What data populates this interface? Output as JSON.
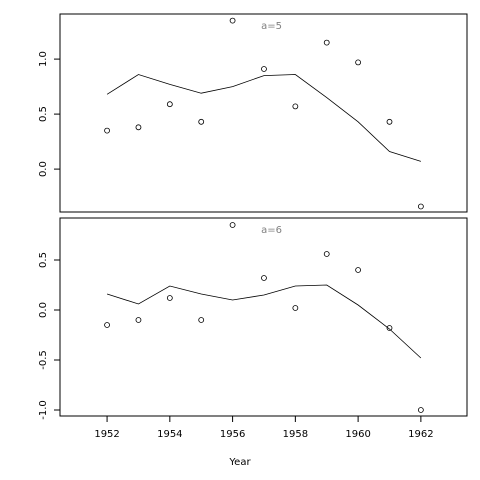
{
  "chart_data": [
    {
      "type": "scatter-line",
      "title": "a=5",
      "x": [
        1952,
        1953,
        1954,
        1955,
        1956,
        1957,
        1958,
        1959,
        1960,
        1961,
        1962
      ],
      "series": [
        {
          "style": "points",
          "color": "#000000",
          "values": [
            0.35,
            0.38,
            0.59,
            0.43,
            1.35,
            0.91,
            0.57,
            1.15,
            0.97,
            0.43,
            -0.34
          ]
        },
        {
          "style": "line",
          "color": "#000000",
          "values": [
            0.68,
            0.86,
            0.77,
            0.69,
            0.75,
            0.85,
            0.86,
            0.65,
            0.43,
            0.16,
            0.07
          ]
        }
      ],
      "xlim": [
        1950.5,
        1963.47
      ],
      "ylim": [
        -0.39,
        1.41
      ],
      "yticks": [
        {
          "value": 0,
          "label": "0.0"
        },
        0.5,
        {
          "value": 1,
          "label": "1.0"
        }
      ]
    },
    {
      "type": "scatter-line",
      "title": "a=6",
      "xlabel": "Year",
      "x": [
        1952,
        1953,
        1954,
        1955,
        1956,
        1957,
        1958,
        1959,
        1960,
        1961,
        1962
      ],
      "series": [
        {
          "style": "points",
          "color": "#000000",
          "values": [
            -0.15,
            -0.1,
            0.12,
            -0.1,
            0.85,
            0.32,
            0.02,
            0.56,
            0.4,
            -0.18,
            -1.0
          ]
        },
        {
          "style": "line",
          "color": "#000000",
          "values": [
            0.16,
            0.06,
            0.24,
            0.16,
            0.1,
            0.15,
            0.24,
            0.25,
            0.05,
            -0.19,
            -0.48
          ]
        }
      ],
      "xlim": [
        1950.5,
        1963.47
      ],
      "ylim": [
        -1.06,
        0.92
      ],
      "xticks": [
        1952,
        1954,
        1956,
        1958,
        1960,
        1962
      ],
      "yticks": [
        {
          "value": -1,
          "label": "-1.0"
        },
        -0.5,
        {
          "value": 0,
          "label": "0.0"
        },
        0.5
      ]
    }
  ]
}
